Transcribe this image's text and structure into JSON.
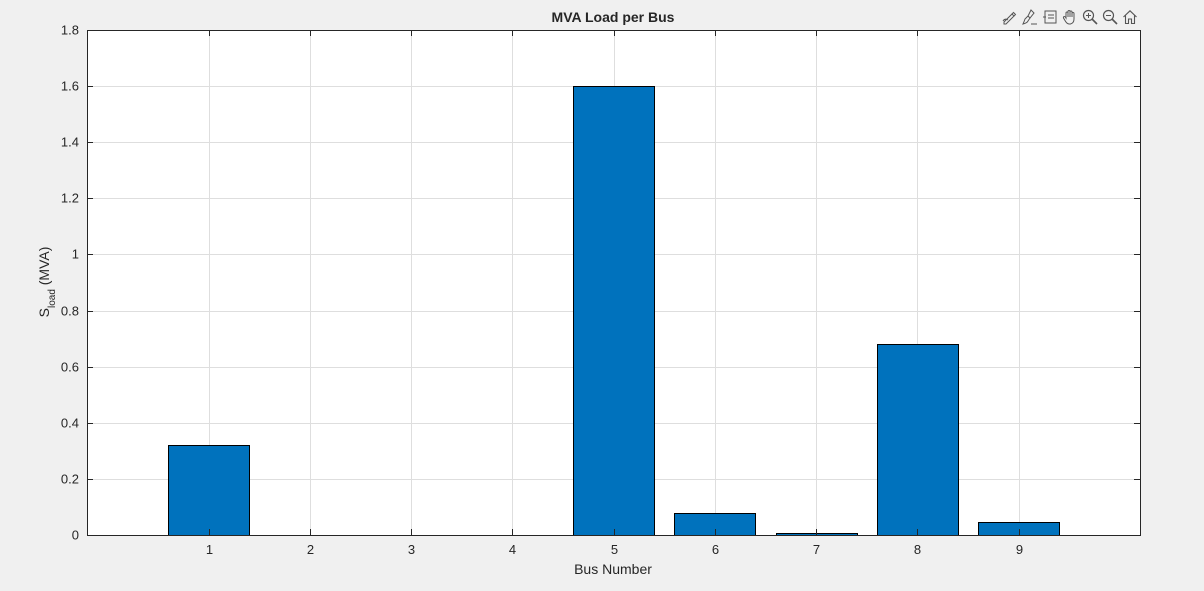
{
  "toolbar": {
    "buttons": [
      {
        "name": "edit-icon"
      },
      {
        "name": "brush-icon"
      },
      {
        "name": "data-tips-icon"
      },
      {
        "name": "pan-icon"
      },
      {
        "name": "zoom-in-icon"
      },
      {
        "name": "zoom-out-icon"
      },
      {
        "name": "home-icon"
      }
    ]
  },
  "colors": {
    "bar_fill": "#0072BD",
    "bar_edge": "#000000",
    "grid": "#dedede",
    "axes_bg": "#ffffff",
    "figure_bg": "#f0f0f0",
    "text": "#262626"
  },
  "chart_data": {
    "type": "bar",
    "title": "MVA Load per Bus",
    "xlabel": "Bus Number",
    "ylabel_main": "S",
    "ylabel_sub": "load",
    "ylabel_unit": " (MVA)",
    "categories": [
      "1",
      "2",
      "3",
      "4",
      "5",
      "6",
      "7",
      "8",
      "9"
    ],
    "x": [
      1,
      2,
      3,
      4,
      5,
      6,
      7,
      8,
      9
    ],
    "values": [
      0.32,
      0,
      0,
      0,
      1.6,
      0.08,
      0.008,
      0.68,
      0.048
    ],
    "xlim": [
      -0.2,
      10.2
    ],
    "ylim": [
      0,
      1.8
    ],
    "yticks": [
      0,
      0.2,
      0.4,
      0.6,
      0.8,
      1,
      1.2,
      1.4,
      1.6,
      1.8
    ],
    "ytick_labels": [
      "0",
      "0.2",
      "0.4",
      "0.6",
      "0.8",
      "1",
      "1.2",
      "1.4",
      "1.6",
      "1.8"
    ],
    "bar_width": 0.8,
    "grid": true,
    "legend": "none"
  }
}
